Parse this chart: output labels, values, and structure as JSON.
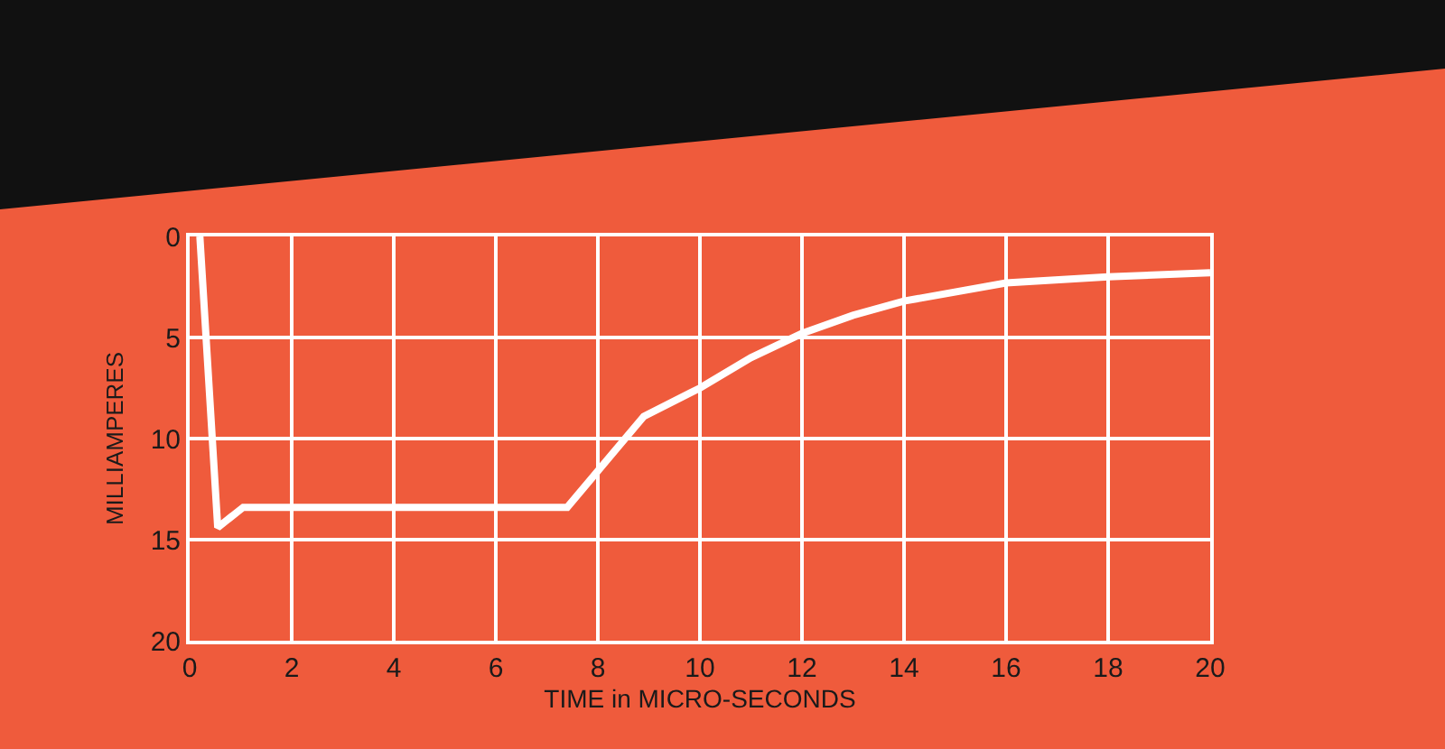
{
  "chart_data": {
    "type": "line",
    "xlabel": "TIME in MICRO-SECONDS",
    "ylabel": "MILLIAMPERES",
    "series": [
      {
        "color": "#ffffff",
        "x": [
          0.2,
          0.55,
          1.05,
          7.4,
          8,
          8.9,
          10,
          11,
          12,
          13,
          14,
          16,
          18,
          20
        ],
        "values": [
          0,
          14.4,
          13.4,
          13.4,
          11.6,
          8.9,
          7.5,
          6.0,
          4.8,
          3.9,
          3.2,
          2.3,
          2.0,
          1.8
        ]
      }
    ],
    "xlim": [
      0,
      20
    ],
    "xticks": [
      0,
      2,
      4,
      6,
      8,
      10,
      12,
      14,
      16,
      18,
      20
    ],
    "ylim": [
      20,
      0
    ],
    "yticks": [
      0,
      5,
      10,
      15,
      20
    ],
    "grid": true,
    "marker": "none",
    "line_style": "solid"
  }
}
